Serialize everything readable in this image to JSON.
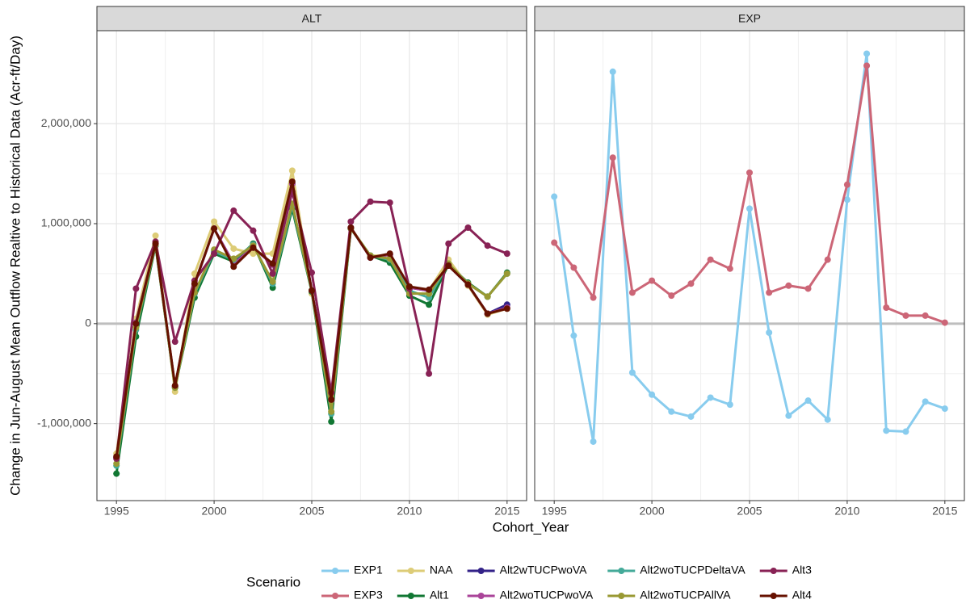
{
  "x_label": "Cohort_Year",
  "y_label": "Change in Jun-August Mean Outflow Realtive to Historical Data (Acr-ft/Day)",
  "legend_title": "Scenario",
  "chart_data": [
    {
      "type": "line",
      "title": "ALT",
      "x": [
        1995,
        1996,
        1997,
        1998,
        1999,
        2000,
        2001,
        2002,
        2003,
        2004,
        2005,
        2006,
        2007,
        2008,
        2009,
        2010,
        2011,
        2012,
        2013,
        2014,
        2015
      ],
      "xlim": [
        1994,
        2016
      ],
      "xticks": [
        1995,
        2000,
        2005,
        2010,
        2015
      ],
      "ylim": [
        -1770000,
        2930000
      ],
      "yticks": [
        {
          "value": -1000000,
          "label": "-1,000,000"
        },
        0,
        {
          "value": 1000000,
          "label": "1,000,000"
        },
        {
          "value": 2000000,
          "label": "2,000,000"
        }
      ],
      "hline": 0,
      "grid": true,
      "series": [
        {
          "name": "NAA",
          "color": "#DDCC77",
          "values": [
            -1300000,
            50000,
            880000,
            -680000,
            500000,
            1020000,
            750000,
            700000,
            700000,
            1530000,
            300000,
            -800000,
            960000,
            680000,
            680000,
            370000,
            330000,
            640000,
            380000,
            90000,
            150000
          ]
        },
        {
          "name": "Alt1",
          "color": "#117733",
          "values": [
            -1500000,
            -130000,
            780000,
            -640000,
            260000,
            700000,
            620000,
            800000,
            360000,
            1150000,
            320000,
            -980000,
            950000,
            680000,
            610000,
            280000,
            190000,
            590000,
            410000,
            270000,
            510000
          ]
        },
        {
          "name": "Alt2wTUCPwoVA",
          "color": "#332288",
          "values": [
            -1340000,
            10000,
            800000,
            -630000,
            390000,
            950000,
            600000,
            760000,
            590000,
            1400000,
            330000,
            -770000,
            960000,
            660000,
            690000,
            360000,
            330000,
            580000,
            390000,
            100000,
            190000
          ]
        },
        {
          "name": "Alt2woTUCPwoVA",
          "color": "#AA4499",
          "values": [
            -1340000,
            10000,
            800000,
            -630000,
            390000,
            950000,
            600000,
            760000,
            590000,
            1400000,
            330000,
            -770000,
            960000,
            660000,
            690000,
            360000,
            330000,
            580000,
            390000,
            100000,
            160000
          ]
        },
        {
          "name": "Alt2woTUCPDeltaVA",
          "color": "#44AA99",
          "values": [
            -1420000,
            -60000,
            790000,
            -640000,
            300000,
            720000,
            640000,
            790000,
            400000,
            1180000,
            330000,
            -900000,
            950000,
            680000,
            640000,
            330000,
            260000,
            600000,
            400000,
            270000,
            500000
          ]
        },
        {
          "name": "Alt2woTUCPAllVA",
          "color": "#999933",
          "values": [
            -1400000,
            -40000,
            790000,
            -640000,
            310000,
            740000,
            650000,
            780000,
            420000,
            1200000,
            330000,
            -880000,
            950000,
            680000,
            650000,
            300000,
            300000,
            600000,
            400000,
            270000,
            500000
          ]
        },
        {
          "name": "Alt3",
          "color": "#882255",
          "values": [
            -1350000,
            350000,
            820000,
            -180000,
            430000,
            700000,
            1130000,
            930000,
            500000,
            1320000,
            510000,
            -690000,
            1020000,
            1220000,
            1210000,
            350000,
            -500000,
            800000,
            960000,
            780000,
            700000
          ]
        },
        {
          "name": "Alt4",
          "color": "#661100",
          "values": [
            -1330000,
            0,
            800000,
            -620000,
            400000,
            950000,
            570000,
            760000,
            600000,
            1420000,
            330000,
            -760000,
            960000,
            660000,
            700000,
            370000,
            340000,
            580000,
            390000,
            100000,
            150000
          ]
        }
      ]
    },
    {
      "type": "line",
      "title": "EXP",
      "x": [
        1995,
        1996,
        1997,
        1998,
        1999,
        2000,
        2001,
        2002,
        2003,
        2004,
        2005,
        2006,
        2007,
        2008,
        2009,
        2010,
        2011,
        2012,
        2013,
        2014,
        2015
      ],
      "xlim": [
        1994,
        2016
      ],
      "xticks": [
        1995,
        2000,
        2005,
        2010,
        2015
      ],
      "ylim": [
        -1770000,
        2930000
      ],
      "yticks": [
        -1000000,
        0,
        1000000,
        2000000
      ],
      "hline": 0,
      "grid": true,
      "series": [
        {
          "name": "EXP1",
          "color": "#88CCEE",
          "values": [
            1270000,
            -120000,
            -1180000,
            2520000,
            -490000,
            -710000,
            -880000,
            -930000,
            -740000,
            -810000,
            1150000,
            -90000,
            -920000,
            -770000,
            -960000,
            1240000,
            2700000,
            -1070000,
            -1080000,
            -780000,
            -850000
          ]
        },
        {
          "name": "EXP3",
          "color": "#CC6677",
          "values": [
            810000,
            560000,
            260000,
            1660000,
            310000,
            430000,
            280000,
            400000,
            640000,
            550000,
            1510000,
            310000,
            380000,
            350000,
            640000,
            1390000,
            2580000,
            160000,
            80000,
            80000,
            10000
          ]
        }
      ]
    }
  ]
}
